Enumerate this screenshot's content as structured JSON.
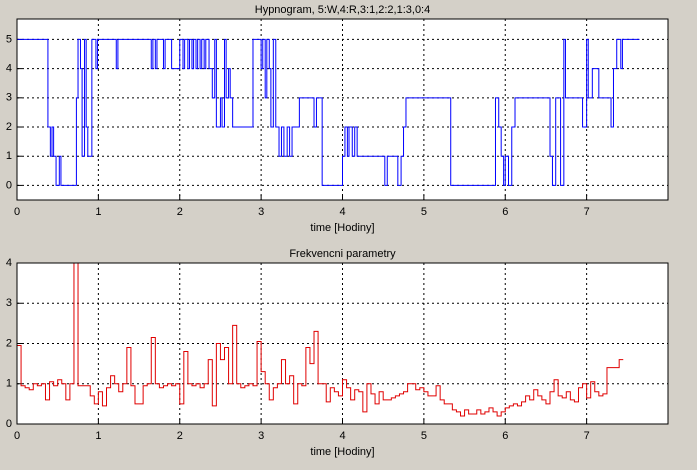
{
  "chart_data": [
    {
      "type": "line",
      "drawstyle": "steps",
      "title": "Hypnogram, 5:W,4:R,3:1,2:2,1:3,0:4",
      "xlabel": "time [Hodiny]",
      "xlim": [
        0,
        8
      ],
      "xticks": [
        0,
        1,
        2,
        3,
        4,
        5,
        6,
        7
      ],
      "ylim": [
        -0.5,
        5.7
      ],
      "yticks": [
        0,
        1,
        2,
        3,
        4,
        5
      ],
      "grid": true,
      "series": [
        {
          "color": "#0000ff",
          "x": [
            0,
            0.38,
            0.41,
            0.43,
            0.45,
            0.48,
            0.52,
            0.54,
            0.73,
            0.75,
            0.78,
            0.8,
            0.83,
            0.85,
            0.87,
            0.92,
            0.97,
            0.99,
            1.22,
            1.24,
            1.65,
            1.67,
            1.7,
            1.72,
            1.8,
            1.82,
            1.9,
            2.0,
            2.04,
            2.06,
            2.1,
            2.12,
            2.15,
            2.17,
            2.2,
            2.22,
            2.25,
            2.27,
            2.3,
            2.32,
            2.36,
            2.4,
            2.43,
            2.45,
            2.5,
            2.52,
            2.55,
            2.57,
            2.6,
            2.62,
            2.65,
            2.9,
            3.0,
            3.02,
            3.05,
            3.07,
            3.1,
            3.12,
            3.15,
            3.18,
            3.22,
            3.25,
            3.28,
            3.32,
            3.35,
            3.38,
            3.47,
            3.65,
            3.68,
            3.75,
            4.0,
            4.03,
            4.06,
            4.08,
            4.12,
            4.15,
            4.18,
            4.52,
            4.55,
            4.68,
            4.72,
            4.75,
            4.78,
            5.33,
            5.88,
            5.92,
            5.95,
            5.98,
            6.0,
            6.04,
            6.08,
            6.12,
            6.55,
            6.58,
            6.62,
            6.68,
            6.72,
            6.74,
            6.95,
            7.0,
            7.02,
            7.07,
            7.15,
            7.3,
            7.33,
            7.37,
            7.42,
            7.44,
            7.65
          ],
          "values": [
            5,
            2,
            1,
            2,
            1,
            0,
            1,
            0,
            3,
            5,
            4,
            1,
            5,
            2,
            1,
            5,
            4,
            5,
            4,
            5,
            4,
            5,
            4,
            5,
            4,
            5,
            4,
            5,
            4,
            5,
            4,
            5,
            4,
            5,
            4,
            5,
            4,
            5,
            4,
            5,
            4,
            3,
            5,
            2,
            3,
            2,
            5,
            3,
            4,
            3,
            2,
            5,
            4,
            5,
            3,
            5,
            4,
            2,
            5,
            2,
            1,
            2,
            1,
            2,
            1,
            2,
            3,
            2,
            3,
            0,
            1,
            2,
            1,
            2,
            1,
            2,
            1,
            0,
            1,
            0,
            1,
            2,
            3,
            0,
            3,
            2,
            1,
            0,
            1,
            0,
            2,
            3,
            1,
            0,
            3,
            0,
            5,
            3,
            2,
            5,
            3,
            4,
            3,
            2,
            4,
            5,
            4,
            5,
            5
          ]
        }
      ]
    },
    {
      "type": "line",
      "drawstyle": "steps",
      "title": "Frekvencni parametry",
      "xlabel": "time [Hodiny]",
      "xlim": [
        0,
        8
      ],
      "xticks": [
        0,
        1,
        2,
        3,
        4,
        5,
        6,
        7
      ],
      "ylim": [
        0,
        4
      ],
      "yticks": [
        0,
        1,
        2,
        3,
        4
      ],
      "grid": true,
      "series": [
        {
          "color": "#e00000",
          "x": [
            0,
            0.05,
            0.1,
            0.15,
            0.2,
            0.25,
            0.3,
            0.35,
            0.4,
            0.45,
            0.5,
            0.55,
            0.6,
            0.65,
            0.7,
            0.75,
            0.8,
            0.85,
            0.9,
            0.95,
            1.0,
            1.05,
            1.1,
            1.15,
            1.2,
            1.25,
            1.3,
            1.35,
            1.4,
            1.45,
            1.5,
            1.55,
            1.6,
            1.65,
            1.7,
            1.75,
            1.8,
            1.85,
            1.9,
            1.95,
            2.0,
            2.05,
            2.1,
            2.15,
            2.2,
            2.25,
            2.3,
            2.35,
            2.4,
            2.45,
            2.5,
            2.55,
            2.6,
            2.65,
            2.7,
            2.75,
            2.8,
            2.85,
            2.9,
            2.95,
            3.0,
            3.05,
            3.1,
            3.15,
            3.2,
            3.25,
            3.3,
            3.35,
            3.4,
            3.45,
            3.5,
            3.55,
            3.6,
            3.65,
            3.7,
            3.75,
            3.8,
            3.85,
            3.9,
            3.95,
            4.0,
            4.05,
            4.1,
            4.15,
            4.2,
            4.25,
            4.3,
            4.35,
            4.4,
            4.45,
            4.5,
            4.55,
            4.6,
            4.65,
            4.7,
            4.75,
            4.8,
            4.85,
            4.9,
            4.95,
            5.0,
            5.05,
            5.1,
            5.15,
            5.2,
            5.25,
            5.3,
            5.35,
            5.4,
            5.45,
            5.5,
            5.55,
            5.6,
            5.65,
            5.7,
            5.75,
            5.8,
            5.85,
            5.9,
            5.95,
            6.0,
            6.05,
            6.1,
            6.15,
            6.2,
            6.25,
            6.3,
            6.35,
            6.4,
            6.45,
            6.5,
            6.55,
            6.6,
            6.65,
            6.7,
            6.75,
            6.8,
            6.85,
            6.9,
            6.95,
            7.0,
            7.05,
            7.1,
            7.15,
            7.2,
            7.25,
            7.3,
            7.35,
            7.4,
            7.45
          ],
          "values": [
            1.95,
            0.95,
            0.9,
            0.85,
            1.0,
            0.95,
            1.0,
            0.6,
            1.05,
            0.95,
            1.1,
            1.0,
            0.6,
            1.0,
            4.0,
            0.95,
            0.95,
            0.95,
            0.7,
            0.5,
            0.8,
            0.45,
            0.9,
            1.2,
            1.0,
            0.8,
            1.0,
            1.9,
            0.95,
            0.5,
            0.5,
            0.95,
            1.0,
            2.15,
            1.0,
            0.9,
            0.95,
            1.0,
            0.95,
            1.0,
            0.5,
            1.8,
            1.0,
            0.95,
            1.0,
            0.9,
            1.0,
            1.6,
            0.45,
            2.0,
            1.6,
            1.9,
            1.0,
            2.45,
            1.0,
            0.9,
            0.95,
            1.0,
            0.95,
            2.05,
            1.3,
            1.0,
            0.6,
            0.9,
            1.0,
            1.6,
            1.0,
            1.2,
            0.5,
            1.0,
            0.95,
            1.9,
            1.5,
            2.3,
            1.0,
            1.0,
            0.55,
            0.9,
            0.8,
            0.7,
            1.1,
            0.9,
            0.6,
            0.85,
            0.8,
            0.3,
            1.0,
            0.75,
            0.5,
            0.8,
            0.6,
            0.6,
            0.65,
            0.7,
            0.75,
            0.8,
            1.0,
            1.0,
            0.85,
            0.9,
            0.8,
            0.7,
            0.7,
            0.95,
            0.6,
            0.5,
            0.5,
            0.35,
            0.3,
            0.2,
            0.35,
            0.25,
            0.25,
            0.35,
            0.25,
            0.3,
            0.4,
            0.3,
            0.2,
            0.3,
            0.4,
            0.45,
            0.5,
            0.45,
            0.55,
            0.7,
            0.6,
            0.85,
            0.7,
            0.6,
            0.5,
            0.8,
            1.1,
            0.7,
            0.65,
            0.8,
            0.6,
            0.55,
            0.9,
            1.0,
            0.65,
            1.05,
            0.8,
            0.7,
            0.75,
            1.4,
            1.4,
            1.4,
            1.6,
            1.6
          ]
        }
      ]
    }
  ]
}
